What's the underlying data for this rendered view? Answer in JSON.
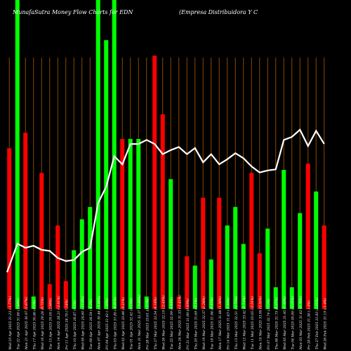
{
  "header": {
    "title_left": "MunafaSutra  Money Flow  Charts for EDN",
    "title_right": "(Empresa  Distribuidora  Y C"
  },
  "colors": {
    "background": "#000000",
    "up_bar": "#00ff00",
    "down_bar": "#ff0000",
    "separator": "#8a4a00",
    "line": "#ffffff",
    "text": "#ffffff"
  },
  "chart_data": {
    "type": "bar",
    "title": "MunafaSutra  Money Flow  Charts for EDN",
    "categories": [
      "Wed 23 Apr 2025",
      "Tue 22 Apr 2025",
      "Mon 21 Apr 2025",
      "Thu 17 Apr 2025",
      "Wed 16 Apr 2025",
      "Tue 15 Apr 2025",
      "Mon 14 Apr 2025",
      "Fri 11 Apr 2025",
      "Thu 10 Apr 2025",
      "Wed 09 Apr 2025",
      "Tue 08 Apr 2025",
      "Mon 07 Apr 2025",
      "Fri 04 Apr 2025",
      "Thu 03 Apr 2025",
      "Wed 02 Apr 2025",
      "Tue 01 Apr 2025",
      "Mon 31 Mar 2025",
      "Fri 28 Mar 2025",
      "Thu 27 Mar 2025",
      "Wed 26 Mar 2025",
      "Tue 25 Mar 2025",
      "Mon 24 Mar 2025",
      "Fri 21 Mar 2025",
      "Thu 20 Mar 2025",
      "Wed 19 Mar 2025",
      "Tue 18 Mar 2025",
      "Mon 17 Mar 2025",
      "Fri 14 Mar 2025",
      "Thu 13 Mar 2025",
      "Wed 12 Mar 2025",
      "Tue 11 Mar 2025",
      "Mon 10 Mar 2025",
      "Fri 07 Mar 2025",
      "Thu 06 Mar 2025",
      "Wed 05 Mar 2025",
      "Tue 04 Mar 2025",
      "Mon 03 Mar 2025",
      "Fri 28 Feb 2025",
      "Thu 27 Feb 2025",
      "Wed 26 Feb 2025"
    ],
    "price_labels": [
      "31.23 (-1.77%)",
      "31.80 (2.68%)",
      "30.97 (1.67%)",
      "30.46 (4.1%)",
      "29.26 (0.72%)",
      "29.05 (2.98%)",
      "28.21 (-2.01%)",
      "28.79 (7.14%)",
      "26.87 (9.2%)",
      "24.60 (-13.8%)",
      "28.54 (-6.3%)",
      "30.46 (-3.06%)",
      "31.42 (-1.35%)",
      "31.85 (-4.81%)",
      "33.46 (3.21%)",
      "32.42 (0.15%)",
      "32.37 (-3.68%)",
      "33.61 (0.21%)",
      "33.54 (4.18%)",
      "32.19 (-2.43%)",
      "32.99 (4.64%)",
      "31.53 (-1.41%)",
      "31.98 (0.93%)",
      "31.69 (-2.1%)",
      "32.37 (1.28%)",
      "31.96 (0.31%)",
      "31.86 (1.38%)",
      "31.43 (-3.32%)",
      "32.51 (-2.72%)",
      "33.42 (1.11%)",
      "33.05 (-2.51%)",
      "33.90 (3.55%)",
      "32.74 (3.12%)",
      "31.75 (0.97%)",
      "31.45 (1.49%)",
      "30.99 (-2.01%)",
      "31.62 (0.76%)",
      "31.38 (-1.4%)",
      "31.83 (2.05%)",
      "31.19 (-1.4%)"
    ],
    "series": [
      {
        "kind": "volume_bars",
        "values": [
          52,
          100,
          57,
          4,
          44,
          8,
          27,
          9,
          19,
          29,
          33,
          100,
          87,
          100,
          55,
          55,
          55,
          4,
          82,
          63,
          42,
          4,
          17,
          14,
          36,
          16,
          36,
          27,
          33,
          21,
          44,
          18,
          26,
          7,
          45,
          7,
          31,
          47,
          38,
          27
        ],
        "direction": [
          "down",
          "up",
          "down",
          "up",
          "down",
          "down",
          "down",
          "down",
          "up",
          "up",
          "up",
          "up",
          "up",
          "up",
          "down",
          "up",
          "up",
          "up",
          "down",
          "down",
          "up",
          "down",
          "down",
          "up",
          "down",
          "up",
          "down",
          "up",
          "up",
          "up",
          "down",
          "down",
          "up",
          "up",
          "up",
          "up",
          "up",
          "down",
          "up",
          "down"
        ]
      },
      {
        "kind": "money_flow_line",
        "values": [
          18,
          32,
          30,
          31,
          29,
          28.5,
          25,
          23.5,
          24,
          28,
          30,
          52,
          60,
          75,
          71,
          81,
          81,
          83,
          81,
          76,
          78,
          79.5,
          76,
          79,
          72,
          76,
          71,
          73.5,
          76.5,
          74,
          70,
          67,
          68,
          68.5,
          83,
          84.5,
          88,
          80,
          87.5,
          81
        ]
      }
    ],
    "ylim": [
      0,
      100
    ]
  }
}
